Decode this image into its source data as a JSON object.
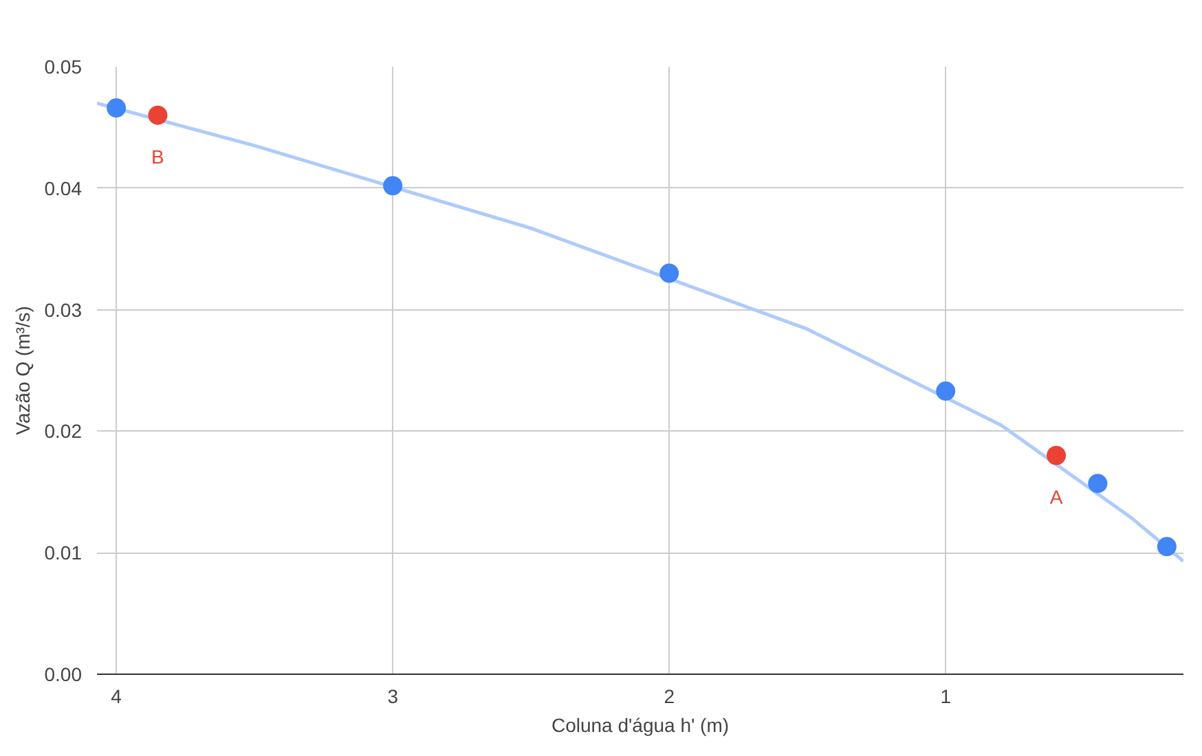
{
  "chart_data": {
    "type": "scatter",
    "xlabel": "Coluna d'água h' (m)",
    "ylabel": "Vazão Q (m³/s)",
    "xlim": [
      4.07,
      0.14
    ],
    "xticks": [
      4,
      3,
      2,
      1
    ],
    "ylim": [
      0,
      0.05
    ],
    "yticks": [
      {
        "value": 0,
        "label": "0.00"
      },
      0.01,
      0.02,
      0.03,
      0.04,
      0.05
    ],
    "grid": true,
    "marker": "circle",
    "series": [
      {
        "type": "line",
        "marker": "none",
        "color": "#aecbfa",
        "x": [
          4.07,
          3.5,
          2.5,
          1.5,
          0.8,
          0.33,
          0.14
        ],
        "values": [
          0.047,
          0.0435,
          0.0367,
          0.0284,
          0.0205,
          0.0129,
          0.0093
        ]
      },
      {
        "color": "#4285f4",
        "x": [
          4,
          3,
          2,
          1,
          0.45,
          0.2
        ],
        "values": [
          0.0466,
          0.0402,
          0.033,
          0.0233,
          0.0157,
          0.0105
        ]
      },
      {
        "color": "#ea4335",
        "x": [
          3.85,
          0.6
        ],
        "values": [
          0.046,
          0.018
        ]
      }
    ],
    "annotations": [
      {
        "text": "B",
        "x": 3.85,
        "y": 0.046
      },
      {
        "text": "A",
        "x": 0.6,
        "y": 0.018
      }
    ]
  }
}
